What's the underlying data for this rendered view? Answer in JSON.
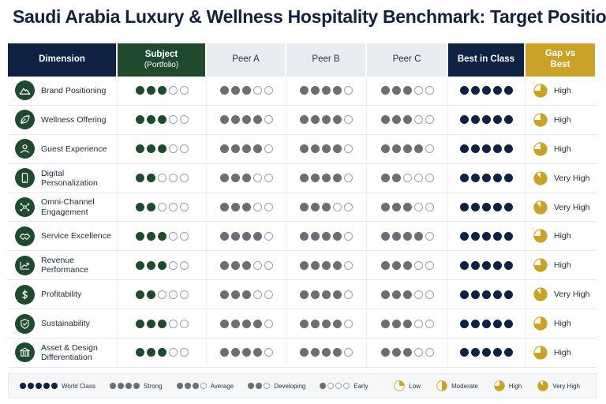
{
  "title": "Saudi Arabia Luxury & Wellness Hospitality Benchmark: Target Position",
  "colors": {
    "subject": "#1f4a2e",
    "peer": "#6b6e72",
    "best": "#0f2243",
    "gold": "#c9a227",
    "navy": "#0f2243"
  },
  "headers": {
    "dimension": "Dimension",
    "subject": "Subject",
    "subject_sub": "(Portfolio)",
    "peer_a": "Peer A",
    "peer_b": "Peer B",
    "peer_c": "Peer C",
    "best": "Best in Class",
    "gap": "Gap vs Best"
  },
  "rows": [
    {
      "label": "Brand Positioning",
      "icon": "mountain-icon",
      "subject": 3,
      "peer_a": 3,
      "peer_b": 4,
      "peer_c": 3,
      "best": 5,
      "gap": "High",
      "gap_level": 0.75
    },
    {
      "label": "Wellness Offering",
      "icon": "leaf-icon",
      "subject": 3,
      "peer_a": 4,
      "peer_b": 4,
      "peer_c": 3,
      "best": 5,
      "gap": "High",
      "gap_level": 0.75
    },
    {
      "label": "Guest Experience",
      "icon": "person-icon",
      "subject": 3,
      "peer_a": 4,
      "peer_b": 4,
      "peer_c": 4,
      "best": 5,
      "gap": "High",
      "gap_level": 0.75
    },
    {
      "label": "Digital Personalization",
      "icon": "phone-icon",
      "subject": 2,
      "peer_a": 3,
      "peer_b": 4,
      "peer_c": 2,
      "best": 5,
      "gap": "Very High",
      "gap_level": 0.9
    },
    {
      "label": "Omni-Channel Engagement",
      "icon": "network-icon",
      "subject": 2,
      "peer_a": 3,
      "peer_b": 3,
      "peer_c": 3,
      "best": 5,
      "gap": "Very High",
      "gap_level": 0.9
    },
    {
      "label": "Service Excellence",
      "icon": "handshake-icon",
      "subject": 3,
      "peer_a": 4,
      "peer_b": 4,
      "peer_c": 4,
      "best": 5,
      "gap": "High",
      "gap_level": 0.75
    },
    {
      "label": "Revenue Performance",
      "icon": "growth-chart-icon",
      "subject": 3,
      "peer_a": 3,
      "peer_b": 4,
      "peer_c": 3,
      "best": 5,
      "gap": "High",
      "gap_level": 0.75
    },
    {
      "label": "Profitability",
      "icon": "dollar-icon",
      "subject": 2,
      "peer_a": 3,
      "peer_b": 4,
      "peer_c": 3,
      "best": 5,
      "gap": "Very High",
      "gap_level": 0.9
    },
    {
      "label": "Sustainability",
      "icon": "shield-check-icon",
      "subject": 3,
      "peer_a": 4,
      "peer_b": 4,
      "peer_c": 3,
      "best": 5,
      "gap": "High",
      "gap_level": 0.75
    },
    {
      "label": "Asset & Design Differentiation",
      "icon": "building-icon",
      "subject": 3,
      "peer_a": 4,
      "peer_b": 4,
      "peer_c": 3,
      "best": 5,
      "gap": "High",
      "gap_level": 0.75
    }
  ],
  "legend": {
    "ratings": [
      {
        "label": "World Class",
        "filled": 5
      },
      {
        "label": "Strong",
        "filled": 4
      },
      {
        "label": "Average",
        "filled": 3
      },
      {
        "label": "Developing",
        "filled": 2
      },
      {
        "label": "Early",
        "filled": 1
      }
    ],
    "gaps": [
      {
        "label": "Low",
        "level": 0.25
      },
      {
        "label": "Moderate",
        "level": 0.5
      },
      {
        "label": "High",
        "level": 0.75
      },
      {
        "label": "Very High",
        "level": 0.9
      }
    ]
  }
}
